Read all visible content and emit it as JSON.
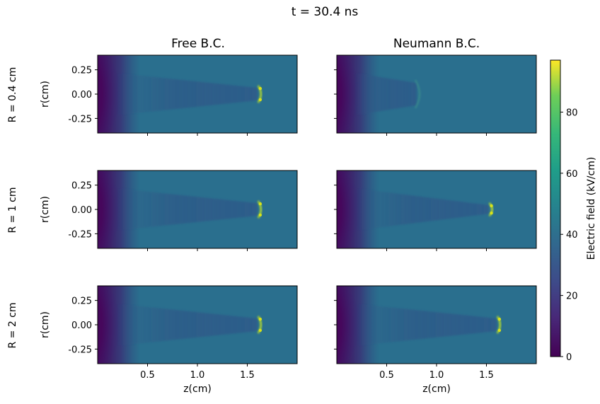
{
  "figure_title": "t = 30.4 ns",
  "columns": [
    "Free B.C.",
    "Neumann B.C."
  ],
  "rows": [
    "R = 0.4 cm",
    "R = 1 cm",
    "R = 2 cm"
  ],
  "colors": {
    "colormap": "viridis",
    "background_field": "#2a6f8e",
    "low_field": "#440154",
    "tip_highlight": "#b8de29"
  },
  "chart_data": [
    {
      "type": "heatmap",
      "panel": "R = 0.4 cm / Free B.C.",
      "ylabel": "r(cm)",
      "xlabel": "",
      "xlim": [
        0,
        2.0
      ],
      "ylim": [
        -0.4,
        0.4
      ],
      "xticks": [
        "0.5",
        "1.0",
        "1.5"
      ],
      "yticks": [
        "0.25",
        "0.00",
        "-0.25"
      ],
      "streamer_head_z": 1.63,
      "channel_halfwidth_r": 0.05,
      "head_field_kv_cm": 90,
      "background_field_kv_cm": 30
    },
    {
      "type": "heatmap",
      "panel": "R = 0.4 cm / Neumann B.C.",
      "ylabel": "",
      "xlabel": "",
      "xlim": [
        0,
        2.0
      ],
      "ylim": [
        -0.4,
        0.4
      ],
      "xticks": [
        "0.5",
        "1.0",
        "1.5"
      ],
      "yticks": [
        "0.25",
        "0.00",
        "-0.25"
      ],
      "streamer_head_z": 0.83,
      "channel_halfwidth_r": 0.1,
      "head_field_kv_cm": 40,
      "background_field_kv_cm": 30
    },
    {
      "type": "heatmap",
      "panel": "R = 1 cm / Free B.C.",
      "ylabel": "r(cm)",
      "xlabel": "",
      "xlim": [
        0,
        2.0
      ],
      "ylim": [
        -0.4,
        0.4
      ],
      "xticks": [
        "0.5",
        "1.0",
        "1.5"
      ],
      "yticks": [
        "0.25",
        "0.00",
        "-0.25"
      ],
      "streamer_head_z": 1.63,
      "channel_halfwidth_r": 0.05,
      "head_field_kv_cm": 90,
      "background_field_kv_cm": 30
    },
    {
      "type": "heatmap",
      "panel": "R = 1 cm / Neumann B.C.",
      "ylabel": "",
      "xlabel": "",
      "xlim": [
        0,
        2.0
      ],
      "ylim": [
        -0.4,
        0.4
      ],
      "xticks": [
        "0.5",
        "1.0",
        "1.5"
      ],
      "yticks": [
        "0.25",
        "0.00",
        "-0.25"
      ],
      "streamer_head_z": 1.55,
      "channel_halfwidth_r": 0.03,
      "head_field_kv_cm": 80,
      "background_field_kv_cm": 30
    },
    {
      "type": "heatmap",
      "panel": "R = 2 cm / Free B.C.",
      "ylabel": "r(cm)",
      "xlabel": "z(cm)",
      "xlim": [
        0,
        2.0
      ],
      "ylim": [
        -0.4,
        0.4
      ],
      "xticks": [
        "0.5",
        "1.0",
        "1.5"
      ],
      "yticks": [
        "0.25",
        "0.00",
        "-0.25"
      ],
      "streamer_head_z": 1.63,
      "channel_halfwidth_r": 0.05,
      "head_field_kv_cm": 90,
      "background_field_kv_cm": 30
    },
    {
      "type": "heatmap",
      "panel": "R = 2 cm / Neumann B.C.",
      "ylabel": "",
      "xlabel": "z(cm)",
      "xlim": [
        0,
        2.0
      ],
      "ylim": [
        -0.4,
        0.4
      ],
      "xticks": [
        "0.5",
        "1.0",
        "1.5"
      ],
      "yticks": [
        "0.25",
        "0.00",
        "-0.25"
      ],
      "streamer_head_z": 1.63,
      "channel_halfwidth_r": 0.05,
      "head_field_kv_cm": 90,
      "background_field_kv_cm": 30
    }
  ],
  "colorbar": {
    "label": "Electric field (kV/cm)",
    "range": [
      0,
      97
    ],
    "ticks": [
      "0",
      "20",
      "40",
      "60",
      "80"
    ]
  }
}
